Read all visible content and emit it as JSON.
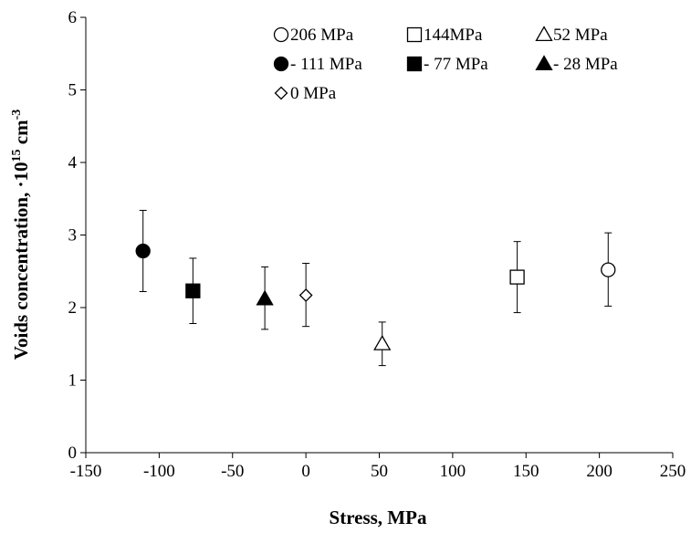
{
  "chart_data": {
    "type": "scatter",
    "xlabel": "Stress, MPa",
    "ylabel_main": "Voids concentration, ·10",
    "ylabel_exp": "15",
    "ylabel_unit": " cm",
    "ylabel_unit_exp": "-3",
    "xlim": [
      -150,
      250
    ],
    "ylim": [
      0,
      6
    ],
    "xticks": [
      -150,
      -100,
      -50,
      0,
      50,
      100,
      150,
      200,
      250
    ],
    "yticks": [
      0,
      1,
      2,
      3,
      4,
      5,
      6
    ],
    "grid": false,
    "legend_position": "top-right",
    "series": [
      {
        "name": "206 MPa",
        "marker": "circle-open",
        "x": 206,
        "y": 2.52,
        "yerr_low": 2.02,
        "yerr_high": 3.03
      },
      {
        "name": "144MPa",
        "marker": "square-open",
        "x": 144,
        "y": 2.42,
        "yerr_low": 1.93,
        "yerr_high": 2.91
      },
      {
        "name": "52 MPa",
        "marker": "triangle-open",
        "x": 52,
        "y": 1.5,
        "yerr_low": 1.2,
        "yerr_high": 1.8
      },
      {
        "name": "- 111 MPa",
        "marker": "circle-filled",
        "x": -111,
        "y": 2.78,
        "yerr_low": 2.22,
        "yerr_high": 3.34
      },
      {
        "name": "- 77 MPa",
        "marker": "square-filled",
        "x": -77,
        "y": 2.23,
        "yerr_low": 1.78,
        "yerr_high": 2.68
      },
      {
        "name": "- 28 MPa",
        "marker": "triangle-filled",
        "x": -28,
        "y": 2.12,
        "yerr_low": 1.7,
        "yerr_high": 2.56
      },
      {
        "name": "0 MPa",
        "marker": "diamond-open",
        "x": 0,
        "y": 2.17,
        "yerr_low": 1.74,
        "yerr_high": 2.61
      }
    ]
  }
}
